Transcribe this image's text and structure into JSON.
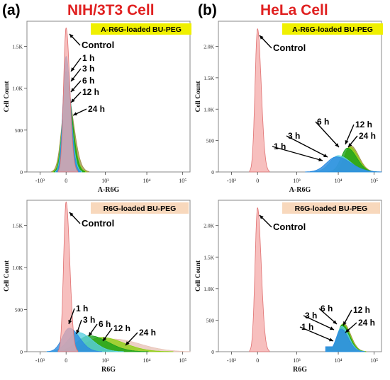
{
  "panel_labels": [
    "(a)",
    "(b)"
  ],
  "column_titles": [
    "NIH/3T3 Cell",
    "HeLa Cell"
  ],
  "colors": {
    "title_red": "#e02020",
    "legend_yellow": "#f0f000",
    "legend_peach": "#f8d8bc",
    "control_fill": "#f4aaa8",
    "control_line": "#e07070",
    "h1": "#2a8ae0",
    "h3": "#5ad0e0",
    "h6": "#1aa01a",
    "h12": "#8cd010",
    "h24": "#a0904a",
    "h24_bottom_left": "#e8c4b8"
  },
  "chart_data": [
    {
      "type": "area",
      "panel": "top-left",
      "legend_title": "A-R6G-loaded BU-PEG",
      "xlabel": "A-R6G",
      "ylabel": "Cell Count",
      "x_scale": "biexponential",
      "x_ticks": [
        "-10³",
        "0",
        "10³",
        "10⁴",
        "10⁵"
      ],
      "y_ticks": [
        "0",
        "500",
        "1.0K",
        "1.5K"
      ],
      "ylim": [
        0,
        1800
      ],
      "series": [
        {
          "name": "Control",
          "peak_x": 0,
          "peak_y": 1720
        },
        {
          "name": "1 h",
          "peak_x": 0,
          "peak_y": 1380
        },
        {
          "name": "3 h",
          "peak_x": 0,
          "peak_y": 1200
        },
        {
          "name": "6 h",
          "peak_x": 10,
          "peak_y": 1080
        },
        {
          "name": "12 h",
          "peak_x": 10,
          "peak_y": 990
        },
        {
          "name": "24 h",
          "peak_x": 15,
          "peak_y": 960
        }
      ]
    },
    {
      "type": "area",
      "panel": "top-right",
      "legend_title": "A-R6G-loaded BU-PEG",
      "xlabel": "A-R6G",
      "ylabel": "Cell Count",
      "x_scale": "biexponential",
      "x_ticks": [
        "-10³",
        "0",
        "10³",
        "10⁴",
        "10⁵"
      ],
      "y_ticks": [
        "0",
        "500",
        "1.0K",
        "1.5K",
        "2.0K"
      ],
      "ylim": [
        0,
        2400
      ],
      "series": [
        {
          "name": "Control",
          "peak_x": 0,
          "peak_y": 2280
        },
        {
          "name": "1 h",
          "peak_x": 9000,
          "peak_y": 240
        },
        {
          "name": "3 h",
          "peak_x": 10000,
          "peak_y": 260
        },
        {
          "name": "6 h",
          "peak_x": 18000,
          "peak_y": 380
        },
        {
          "name": "12 h",
          "peak_x": 21000,
          "peak_y": 400
        },
        {
          "name": "24 h",
          "peak_x": 22000,
          "peak_y": 420
        }
      ]
    },
    {
      "type": "area",
      "panel": "bottom-left",
      "legend_title": "R6G-loaded BU-PEG",
      "xlabel": "R6G",
      "ylabel": "Cell Count",
      "x_scale": "biexponential",
      "x_ticks": [
        "-10³",
        "0",
        "10³",
        "10⁴",
        "10⁵"
      ],
      "y_ticks": [
        "0",
        "500",
        "1.0K",
        "1.5K"
      ],
      "ylim": [
        0,
        1800
      ],
      "series": [
        {
          "name": "Control",
          "peak_x": 0,
          "peak_y": 1780
        },
        {
          "name": "1 h",
          "peak_x": 80,
          "peak_y": 280
        },
        {
          "name": "3 h",
          "peak_x": 300,
          "peak_y": 230
        },
        {
          "name": "6 h",
          "peak_x": 600,
          "peak_y": 190
        },
        {
          "name": "12 h",
          "peak_x": 900,
          "peak_y": 170
        },
        {
          "name": "24 h",
          "peak_x": 1600,
          "peak_y": 150
        }
      ]
    },
    {
      "type": "area",
      "panel": "bottom-right",
      "legend_title": "R6G-loaded BU-PEG",
      "xlabel": "R6G",
      "ylabel": "Cell Count",
      "x_scale": "biexponential",
      "x_ticks": [
        "-10³",
        "0",
        "10³",
        "10⁴",
        "10⁵"
      ],
      "y_ticks": [
        "0",
        "500",
        "1.0K",
        "1.5K",
        "2.0K"
      ],
      "ylim": [
        0,
        2400
      ],
      "series": [
        {
          "name": "Control",
          "peak_x": 0,
          "peak_y": 2280
        },
        {
          "name": "1 h",
          "peak_x": 12000,
          "peak_y": 360
        },
        {
          "name": "3 h",
          "peak_x": 12500,
          "peak_y": 400
        },
        {
          "name": "6 h",
          "peak_x": 13000,
          "peak_y": 430
        },
        {
          "name": "12 h",
          "peak_x": 13500,
          "peak_y": 440
        },
        {
          "name": "24 h",
          "peak_x": 14000,
          "peak_y": 450
        }
      ]
    }
  ]
}
